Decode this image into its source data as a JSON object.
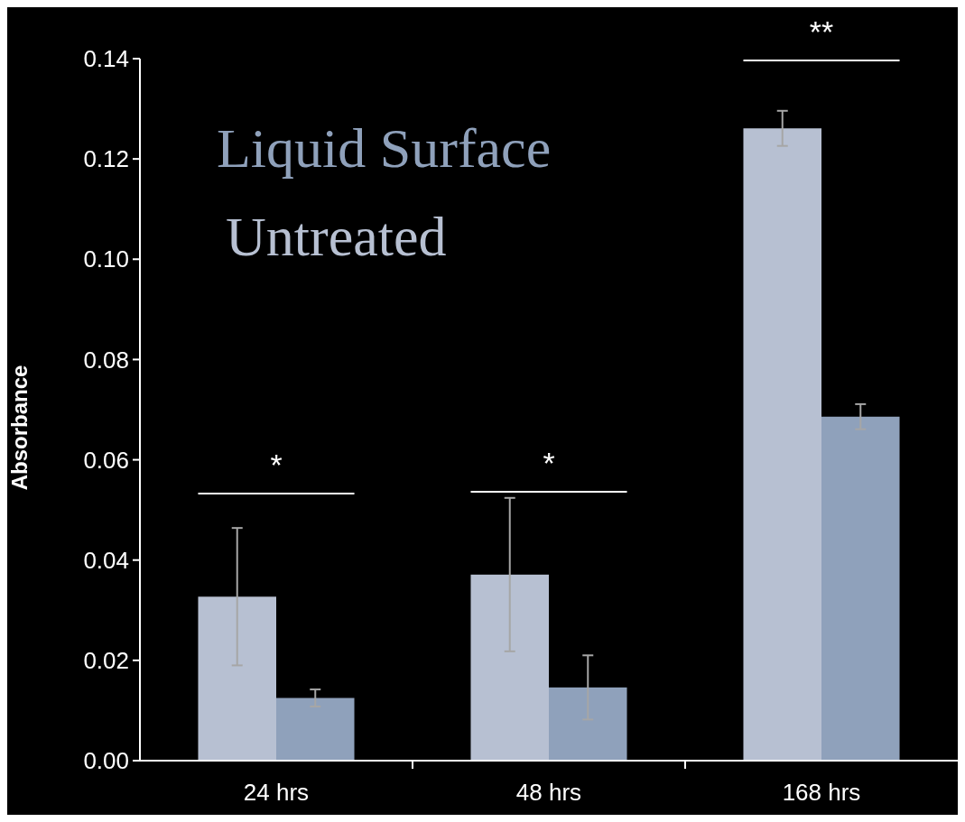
{
  "chart_data": {
    "type": "bar",
    "ylabel": "Absorbance",
    "categories": [
      "24 hrs",
      "48 hrs",
      "168 hrs"
    ],
    "series": [
      {
        "name": "Untreated",
        "color": "#b7c0d2",
        "values": [
          0.0327,
          0.0371,
          0.1261
        ],
        "errors": [
          0.0137,
          0.0153,
          0.0035
        ]
      },
      {
        "name": "Liquid Surface",
        "color": "#8fa1bb",
        "values": [
          0.0125,
          0.0146,
          0.0686
        ],
        "errors": [
          0.0017,
          0.0064,
          0.0025
        ]
      }
    ],
    "ylim": [
      0,
      0.14
    ],
    "yticks": [
      {
        "value": 0,
        "label": "0.00"
      },
      {
        "value": 0.02,
        "label": "0.02"
      },
      {
        "value": 0.04,
        "label": "0.04"
      },
      {
        "value": 0.06,
        "label": "0.06"
      },
      {
        "value": 0.08,
        "label": "0.08"
      },
      {
        "value": 0.1,
        "label": "0.10"
      },
      {
        "value": 0.12,
        "label": "0.12"
      },
      {
        "value": 0.14,
        "label": "0.14"
      }
    ],
    "legend": "top left",
    "annotations": [
      "*",
      "*",
      "**"
    ]
  }
}
